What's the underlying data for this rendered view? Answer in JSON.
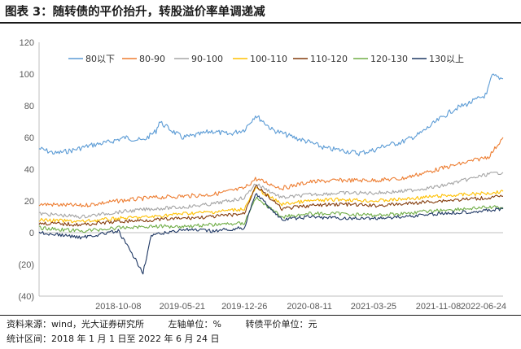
{
  "header": {
    "title": "图表 3：随转债的平价抬升，转股溢价率单调递减"
  },
  "footer": {
    "source": "资料来源：wind，光大证券研究所",
    "left_axis": "左轴单位：%",
    "right_unit": "转债平价单位：元",
    "period": "统计区间：2018 年 1 月 1 日至 2022 年 6 月 24 日"
  },
  "chart_data": {
    "type": "line",
    "title": "",
    "xlabel": "",
    "ylabel": "",
    "ylim": [
      -40,
      120
    ],
    "y_ticks": [
      -40,
      -20,
      0,
      20,
      40,
      60,
      80,
      100,
      120
    ],
    "y_tick_labels": [
      "(40)",
      "(20)",
      "0",
      "20",
      "40",
      "60",
      "80",
      "100",
      "120"
    ],
    "x_ticks": [
      "2018-10-08",
      "2019-05-21",
      "2019-12-26",
      "2020-08-11",
      "2021-03-25",
      "2021-11-08",
      "2022-06-24"
    ],
    "x_range": [
      "2018-01-02",
      "2022-06-24"
    ],
    "grid": false,
    "legend_position": "top",
    "series": [
      {
        "name": "80以下",
        "color": "#5b9bd5",
        "points": [
          [
            "2018-01-02",
            53
          ],
          [
            "2018-03-01",
            50
          ],
          [
            "2018-05-01",
            52
          ],
          [
            "2018-07-02",
            55
          ],
          [
            "2018-09-03",
            57
          ],
          [
            "2018-11-01",
            60
          ],
          [
            "2019-01-02",
            58
          ],
          [
            "2019-02-18",
            64
          ],
          [
            "2019-03-01",
            70
          ],
          [
            "2019-04-01",
            66
          ],
          [
            "2019-05-21",
            60
          ],
          [
            "2019-07-01",
            61
          ],
          [
            "2019-09-02",
            64
          ],
          [
            "2019-11-01",
            62
          ],
          [
            "2019-12-26",
            65
          ],
          [
            "2020-02-03",
            74
          ],
          [
            "2020-03-02",
            70
          ],
          [
            "2020-04-01",
            65
          ],
          [
            "2020-06-01",
            61
          ],
          [
            "2020-08-11",
            57
          ],
          [
            "2020-10-09",
            53
          ],
          [
            "2020-12-01",
            52
          ],
          [
            "2021-02-01",
            50
          ],
          [
            "2021-03-25",
            52
          ],
          [
            "2021-05-06",
            55
          ],
          [
            "2021-07-01",
            57
          ],
          [
            "2021-09-01",
            62
          ],
          [
            "2021-11-08",
            71
          ],
          [
            "2022-01-04",
            78
          ],
          [
            "2022-03-01",
            82
          ],
          [
            "2022-04-27",
            87
          ],
          [
            "2022-05-16",
            99
          ],
          [
            "2022-06-24",
            97
          ]
        ]
      },
      {
        "name": "80-90",
        "color": "#ed7d31",
        "points": [
          [
            "2018-01-02",
            18
          ],
          [
            "2018-06-01",
            17
          ],
          [
            "2018-10-08",
            20
          ],
          [
            "2019-02-01",
            22
          ],
          [
            "2019-05-21",
            23
          ],
          [
            "2019-09-02",
            24
          ],
          [
            "2019-12-26",
            28
          ],
          [
            "2020-02-03",
            34
          ],
          [
            "2020-05-06",
            28
          ],
          [
            "2020-08-11",
            32
          ],
          [
            "2020-12-01",
            33
          ],
          [
            "2021-03-25",
            33
          ],
          [
            "2021-07-01",
            34
          ],
          [
            "2021-11-08",
            40
          ],
          [
            "2022-02-07",
            44
          ],
          [
            "2022-05-05",
            48
          ],
          [
            "2022-06-24",
            60
          ]
        ]
      },
      {
        "name": "90-100",
        "color": "#a5a5a5",
        "points": [
          [
            "2018-01-02",
            12
          ],
          [
            "2018-06-01",
            10
          ],
          [
            "2018-10-08",
            13
          ],
          [
            "2019-02-01",
            15
          ],
          [
            "2019-05-21",
            16
          ],
          [
            "2019-09-02",
            18
          ],
          [
            "2019-12-26",
            22
          ],
          [
            "2020-02-03",
            31
          ],
          [
            "2020-05-06",
            22
          ],
          [
            "2020-08-11",
            24
          ],
          [
            "2020-12-01",
            25
          ],
          [
            "2021-03-25",
            25
          ],
          [
            "2021-07-01",
            26
          ],
          [
            "2021-11-08",
            29
          ],
          [
            "2022-02-07",
            33
          ],
          [
            "2022-05-05",
            37
          ],
          [
            "2022-06-24",
            38
          ]
        ]
      },
      {
        "name": "100-110",
        "color": "#ffc000",
        "points": [
          [
            "2018-01-02",
            8
          ],
          [
            "2018-06-01",
            7
          ],
          [
            "2018-10-08",
            9
          ],
          [
            "2019-02-01",
            10
          ],
          [
            "2019-05-21",
            12
          ],
          [
            "2019-09-02",
            13
          ],
          [
            "2019-12-26",
            15
          ],
          [
            "2020-02-03",
            28
          ],
          [
            "2020-05-06",
            18
          ],
          [
            "2020-08-11",
            20
          ],
          [
            "2020-12-01",
            21
          ],
          [
            "2021-03-25",
            20
          ],
          [
            "2021-07-01",
            21
          ],
          [
            "2021-11-08",
            23
          ],
          [
            "2022-02-07",
            24
          ],
          [
            "2022-05-05",
            25
          ],
          [
            "2022-06-24",
            26
          ]
        ]
      },
      {
        "name": "110-120",
        "color": "#843c0c",
        "points": [
          [
            "2018-01-02",
            6
          ],
          [
            "2018-06-01",
            5
          ],
          [
            "2018-10-08",
            7
          ],
          [
            "2019-02-01",
            8
          ],
          [
            "2019-05-21",
            9
          ],
          [
            "2019-09-02",
            10
          ],
          [
            "2019-12-26",
            12
          ],
          [
            "2020-02-03",
            30
          ],
          [
            "2020-05-06",
            15
          ],
          [
            "2020-08-11",
            17
          ],
          [
            "2020-12-01",
            18
          ],
          [
            "2021-03-25",
            17
          ],
          [
            "2021-07-01",
            18
          ],
          [
            "2021-11-08",
            20
          ],
          [
            "2022-02-07",
            21
          ],
          [
            "2022-05-05",
            22
          ],
          [
            "2022-06-24",
            23
          ]
        ]
      },
      {
        "name": "120-130",
        "color": "#70ad47",
        "points": [
          [
            "2018-01-02",
            3
          ],
          [
            "2018-06-01",
            1
          ],
          [
            "2018-10-08",
            3
          ],
          [
            "2019-02-01",
            4
          ],
          [
            "2019-05-21",
            4
          ],
          [
            "2019-09-02",
            5
          ],
          [
            "2019-12-26",
            6
          ],
          [
            "2020-02-03",
            22
          ],
          [
            "2020-05-06",
            10
          ],
          [
            "2020-08-11",
            12
          ],
          [
            "2020-12-01",
            12
          ],
          [
            "2021-03-25",
            11
          ],
          [
            "2021-07-01",
            12
          ],
          [
            "2021-11-08",
            14
          ],
          [
            "2022-02-07",
            15
          ],
          [
            "2022-05-05",
            16
          ],
          [
            "2022-06-24",
            16
          ]
        ]
      },
      {
        "name": "130以上",
        "color": "#1f3864",
        "points": [
          [
            "2018-01-02",
            0
          ],
          [
            "2018-06-01",
            -3
          ],
          [
            "2018-10-08",
            1
          ],
          [
            "2019-01-03",
            -25
          ],
          [
            "2019-02-01",
            -2
          ],
          [
            "2019-05-21",
            2
          ],
          [
            "2019-09-02",
            1
          ],
          [
            "2019-12-26",
            3
          ],
          [
            "2020-02-03",
            25
          ],
          [
            "2020-05-06",
            8
          ],
          [
            "2020-08-11",
            10
          ],
          [
            "2020-12-01",
            9
          ],
          [
            "2021-03-25",
            9
          ],
          [
            "2021-07-01",
            10
          ],
          [
            "2021-11-08",
            12
          ],
          [
            "2022-02-07",
            13
          ],
          [
            "2022-05-05",
            14
          ],
          [
            "2022-06-24",
            15
          ]
        ]
      }
    ]
  }
}
